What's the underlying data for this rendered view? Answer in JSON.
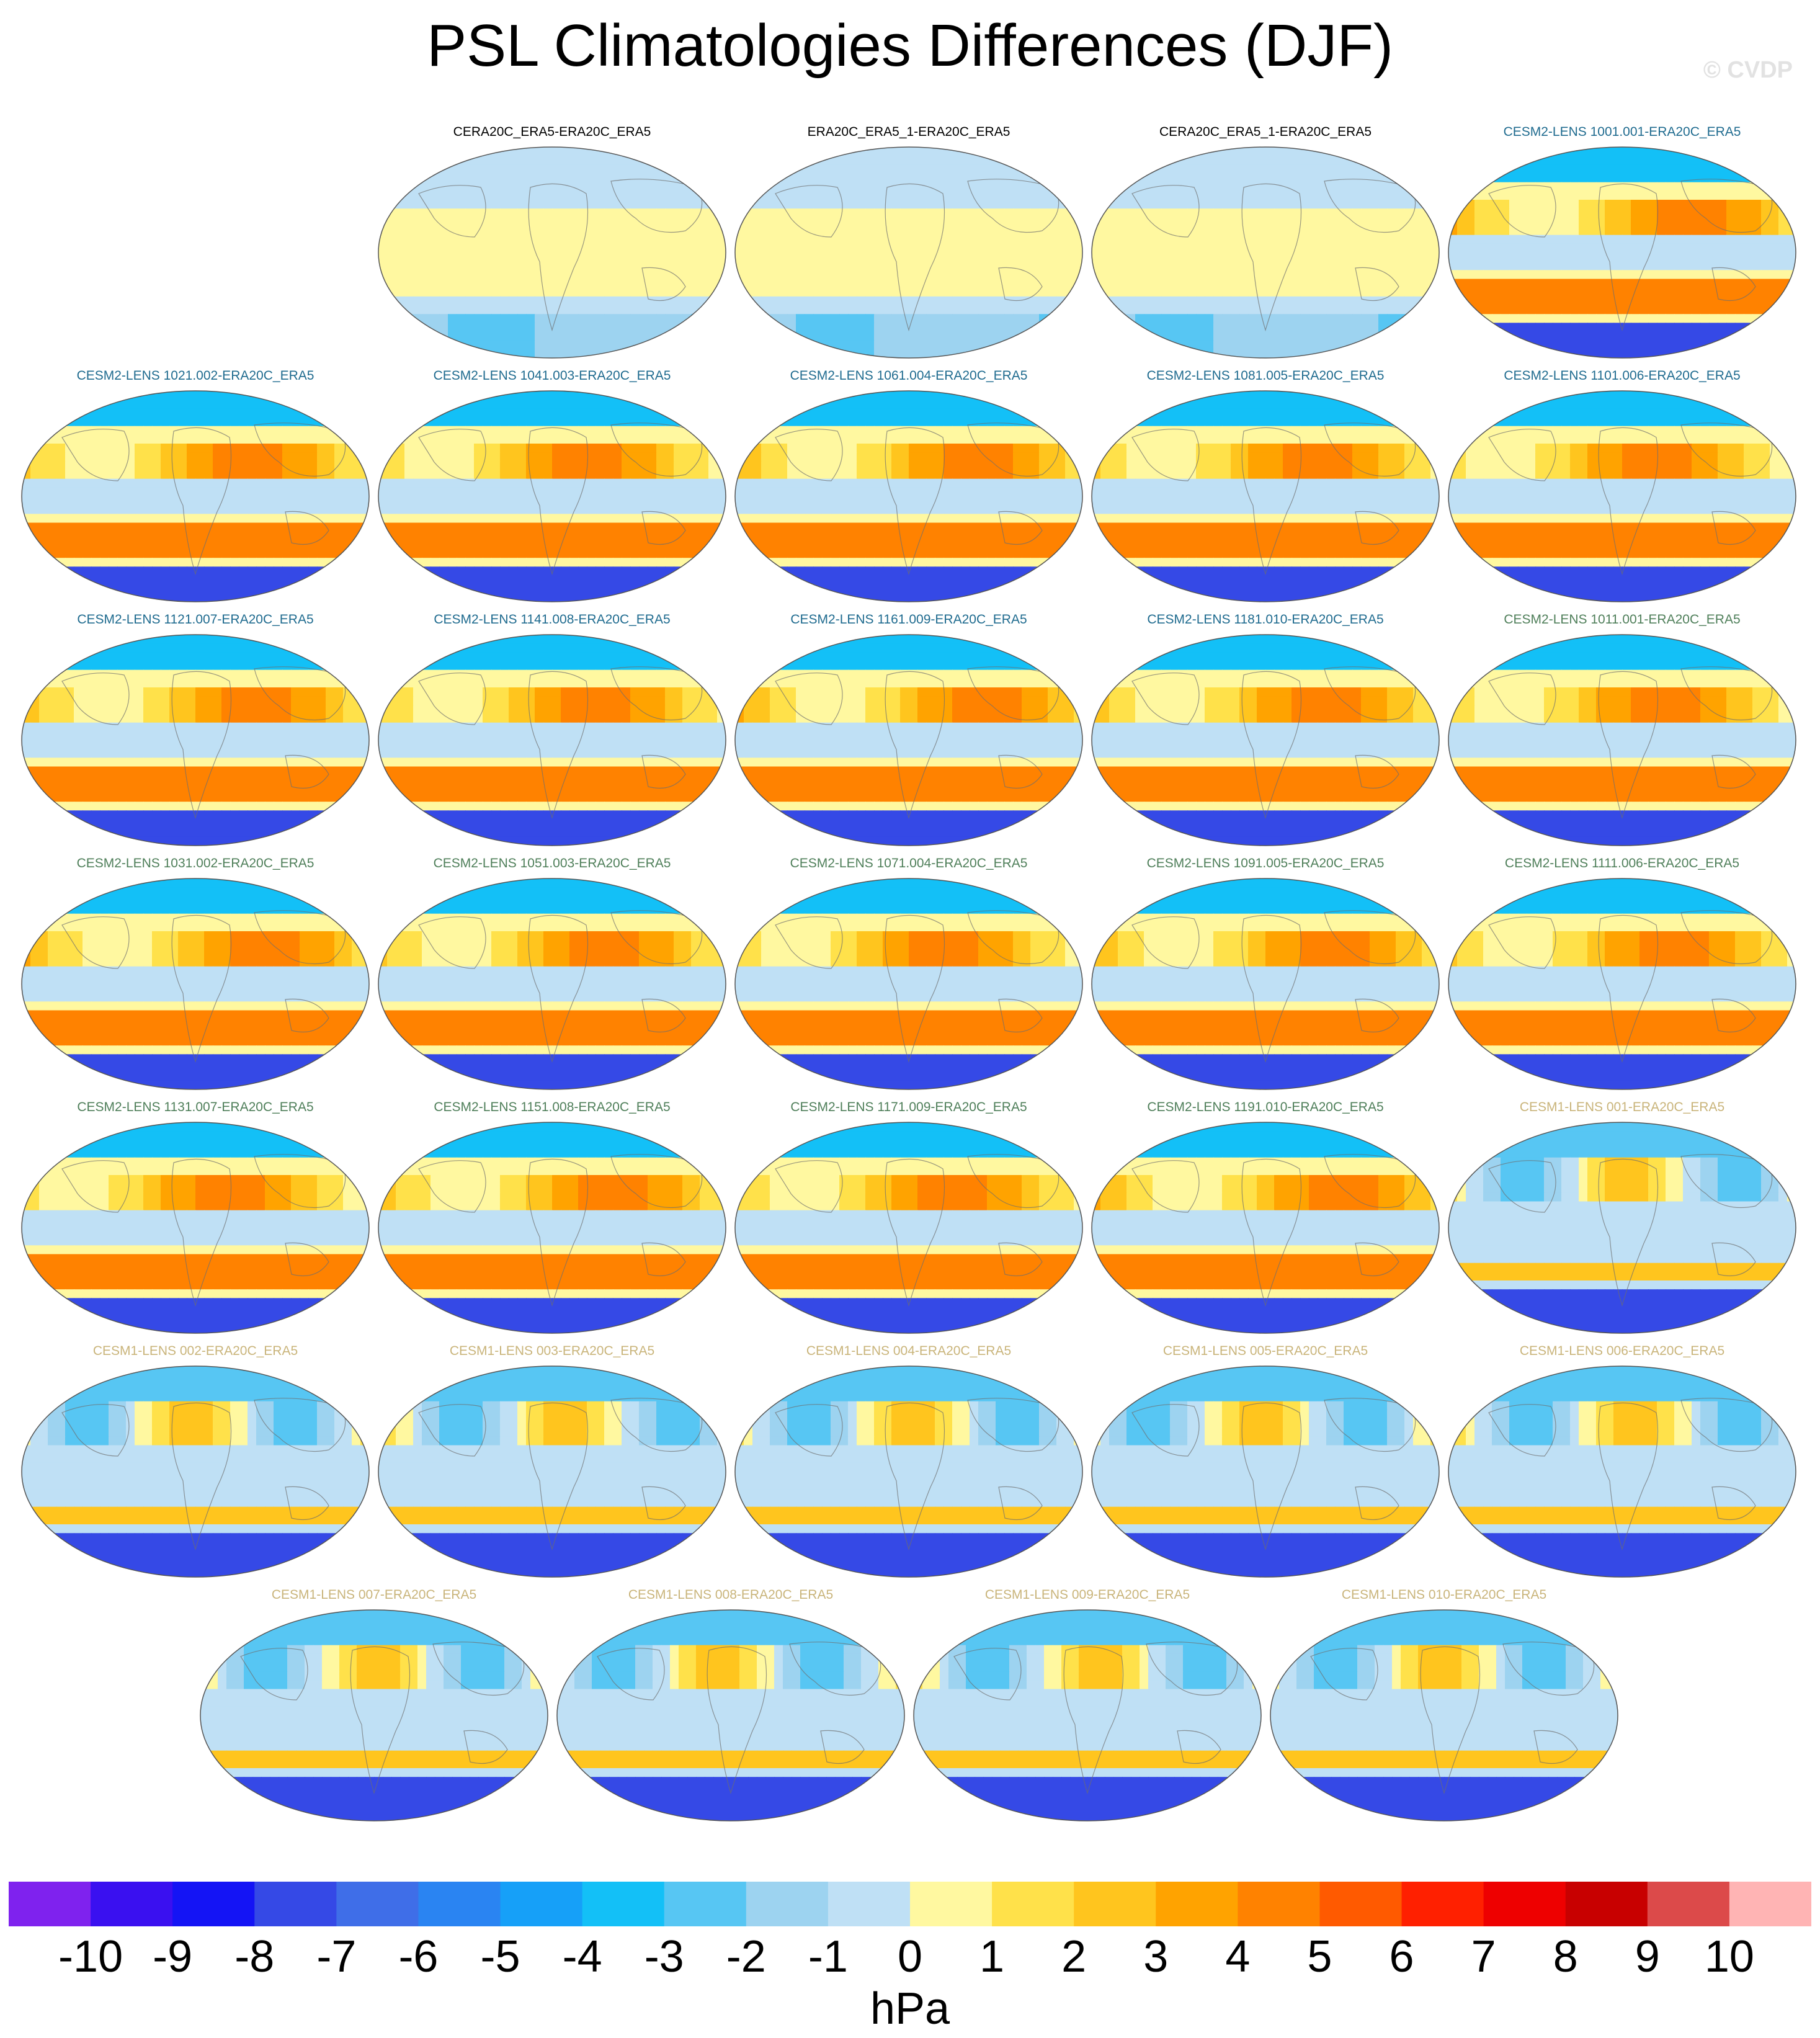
{
  "title": "PSL Climatologies Differences (DJF)",
  "watermark": "© CVDP",
  "colors": {
    "obs_title": "#000000",
    "cesm2_a_title": "#1f6b8f",
    "cesm2_b_title": "#4f7f5a",
    "cesm1_title": "#c9b47a"
  },
  "chart_data": {
    "type": "heatmap",
    "projection": "robinson-like global map",
    "units": "hPa",
    "colorbar": {
      "levels": [
        -10,
        -9,
        -8,
        -7,
        -6,
        -5,
        -4,
        -3,
        -2,
        -1,
        0,
        1,
        2,
        3,
        4,
        5,
        6,
        7,
        8,
        9,
        10
      ],
      "tick_labels": [
        "-10",
        "-9",
        "-8",
        "-7",
        "-6",
        "-5",
        "-4",
        "-3",
        "-2",
        "-1",
        "0",
        "1",
        "2",
        "3",
        "4",
        "5",
        "6",
        "7",
        "8",
        "9",
        "10"
      ],
      "colors": [
        "#7f22ee",
        "#3a10f0",
        "#1414f5",
        "#3549e6",
        "#3f6ee8",
        "#2a84f2",
        "#16a0f8",
        "#13c0f7",
        "#57c6f3",
        "#9dd3f0",
        "#bfe0f5",
        "#fff8a0",
        "#ffe14a",
        "#ffc51e",
        "#ffa300",
        "#ff8200",
        "#ff5a00",
        "#ff2000",
        "#ee0000",
        "#c80000",
        "#dc4a4a",
        "#ffb4b4"
      ]
    },
    "panels": [
      {
        "title": "CERA20C_ERA5-ERA20C_ERA5",
        "group": "obs"
      },
      {
        "title": "ERA20C_ERA5_1-ERA20C_ERA5",
        "group": "obs"
      },
      {
        "title": "CERA20C_ERA5_1-ERA20C_ERA5",
        "group": "obs"
      },
      {
        "title": "CESM2-LENS 1001.001-ERA20C_ERA5",
        "group": "cesm2a"
      },
      {
        "title": "CESM2-LENS 1021.002-ERA20C_ERA5",
        "group": "cesm2a"
      },
      {
        "title": "CESM2-LENS 1041.003-ERA20C_ERA5",
        "group": "cesm2a"
      },
      {
        "title": "CESM2-LENS 1061.004-ERA20C_ERA5",
        "group": "cesm2a"
      },
      {
        "title": "CESM2-LENS 1081.005-ERA20C_ERA5",
        "group": "cesm2a"
      },
      {
        "title": "CESM2-LENS 1101.006-ERA20C_ERA5",
        "group": "cesm2a"
      },
      {
        "title": "CESM2-LENS 1121.007-ERA20C_ERA5",
        "group": "cesm2a"
      },
      {
        "title": "CESM2-LENS 1141.008-ERA20C_ERA5",
        "group": "cesm2a"
      },
      {
        "title": "CESM2-LENS 1161.009-ERA20C_ERA5",
        "group": "cesm2a"
      },
      {
        "title": "CESM2-LENS 1181.010-ERA20C_ERA5",
        "group": "cesm2a"
      },
      {
        "title": "CESM2-LENS 1011.001-ERA20C_ERA5",
        "group": "cesm2b"
      },
      {
        "title": "CESM2-LENS 1031.002-ERA20C_ERA5",
        "group": "cesm2b"
      },
      {
        "title": "CESM2-LENS 1051.003-ERA20C_ERA5",
        "group": "cesm2b"
      },
      {
        "title": "CESM2-LENS 1071.004-ERA20C_ERA5",
        "group": "cesm2b"
      },
      {
        "title": "CESM2-LENS 1091.005-ERA20C_ERA5",
        "group": "cesm2b"
      },
      {
        "title": "CESM2-LENS 1111.006-ERA20C_ERA5",
        "group": "cesm2b"
      },
      {
        "title": "CESM2-LENS 1131.007-ERA20C_ERA5",
        "group": "cesm2b"
      },
      {
        "title": "CESM2-LENS 1151.008-ERA20C_ERA5",
        "group": "cesm2b"
      },
      {
        "title": "CESM2-LENS 1171.009-ERA20C_ERA5",
        "group": "cesm2b"
      },
      {
        "title": "CESM2-LENS 1191.010-ERA20C_ERA5",
        "group": "cesm2b"
      },
      {
        "title": "CESM1-LENS 001-ERA20C_ERA5",
        "group": "cesm1"
      },
      {
        "title": "CESM1-LENS 002-ERA20C_ERA5",
        "group": "cesm1"
      },
      {
        "title": "CESM1-LENS 003-ERA20C_ERA5",
        "group": "cesm1"
      },
      {
        "title": "CESM1-LENS 004-ERA20C_ERA5",
        "group": "cesm1"
      },
      {
        "title": "CESM1-LENS 005-ERA20C_ERA5",
        "group": "cesm1"
      },
      {
        "title": "CESM1-LENS 006-ERA20C_ERA5",
        "group": "cesm1"
      },
      {
        "title": "CESM1-LENS 007-ERA20C_ERA5",
        "group": "cesm1"
      },
      {
        "title": "CESM1-LENS 008-ERA20C_ERA5",
        "group": "cesm1"
      },
      {
        "title": "CESM1-LENS 009-ERA20C_ERA5",
        "group": "cesm1"
      },
      {
        "title": "CESM1-LENS 010-ERA20C_ERA5",
        "group": "cesm1"
      }
    ]
  }
}
